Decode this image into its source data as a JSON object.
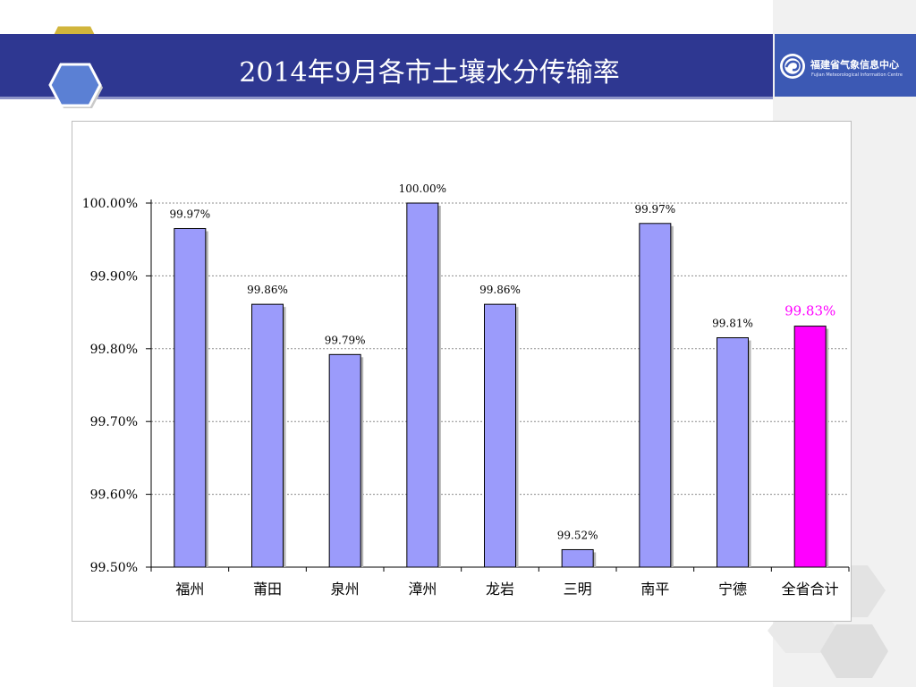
{
  "slide": {
    "title": "2014年9月各市土壤水分传输率",
    "logo": {
      "name_cn": "福建省气象信息中心",
      "name_en": "Fujian Meteorological Information Centre"
    }
  },
  "colors": {
    "banner": "#2e3791",
    "bar": "#9b9bfb",
    "highlight_bar": "#ff00ff",
    "highlight_label": "#ff00ff"
  },
  "chart_data": {
    "type": "bar",
    "title": "",
    "xlabel": "",
    "ylabel": "",
    "ylim": [
      99.5,
      100.0
    ],
    "y_ticks": [
      {
        "value": 99.5,
        "label": "99.50%"
      },
      {
        "value": 99.6,
        "label": "99.60%"
      },
      {
        "value": 99.7,
        "label": "99.70%"
      },
      {
        "value": 99.8,
        "label": "99.80%"
      },
      {
        "value": 99.9,
        "label": "99.90%"
      },
      {
        "value": 100.0,
        "label": "100.00%"
      }
    ],
    "grid": true,
    "categories": [
      "福州",
      "莆田",
      "泉州",
      "漳州",
      "龙岩",
      "三明",
      "南平",
      "宁德",
      "全省合计"
    ],
    "values": [
      99.965,
      99.861,
      99.792,
      100.0,
      99.861,
      99.524,
      99.972,
      99.815,
      99.831
    ],
    "data_labels": [
      "99.97%",
      "99.86%",
      "99.79%",
      "100.00%",
      "99.86%",
      "99.52%",
      "99.97%",
      "99.81%",
      "99.83%"
    ],
    "highlight_index": 8
  }
}
